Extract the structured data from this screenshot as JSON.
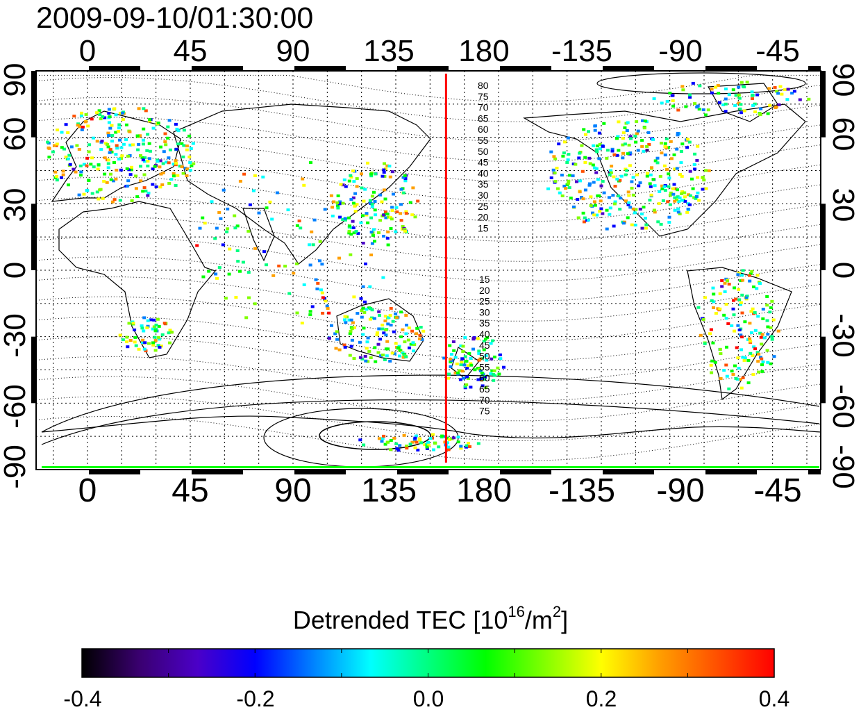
{
  "timestamp": "2009-09-10/01:30:00",
  "map": {
    "lon_ticks_top": [
      "0",
      "45",
      "90",
      "135",
      "180",
      "-135",
      "-90",
      "-45"
    ],
    "lon_ticks_bottom": [
      "0",
      "45",
      "90",
      "135",
      "180",
      "-135",
      "-90",
      "-45"
    ],
    "lat_ticks_left": [
      "90",
      "60",
      "30",
      "0",
      "-30",
      "-60",
      "-90"
    ],
    "lat_ticks_right": [
      "90",
      "60",
      "30",
      "0",
      "-30",
      "-60",
      "-90"
    ],
    "lon_range": [
      -20,
      180,
      -25
    ],
    "lat_range": [
      -90,
      90
    ],
    "grid": true,
    "terminator_longitude": 157,
    "terminator_color": "#ff0000",
    "contour_labels_north": [
      "80",
      "75",
      "70",
      "65",
      "60",
      "55",
      "50",
      "45",
      "40",
      "35",
      "30",
      "25",
      "20",
      "15"
    ],
    "contour_labels_south": [
      "15",
      "20",
      "25",
      "30",
      "35",
      "40",
      "45",
      "50",
      "55",
      "60",
      "65",
      "70",
      "75"
    ]
  },
  "colorbar": {
    "title_main": "Detrended TEC  [10",
    "title_exp": "16",
    "title_mid": "/m",
    "title_exp2": "2",
    "title_end": "]",
    "tick_labels": [
      "-0.4",
      "-0.2",
      "0.0",
      "0.2",
      "0.4"
    ],
    "min": -0.4,
    "max": 0.4,
    "colors": [
      "#000000",
      "#3a0070",
      "#4b00c8",
      "#0000ff",
      "#0080ff",
      "#00ffff",
      "#00ff80",
      "#00ff00",
      "#80ff00",
      "#ffff00",
      "#ffa000",
      "#ff5000",
      "#ff0000"
    ]
  }
}
